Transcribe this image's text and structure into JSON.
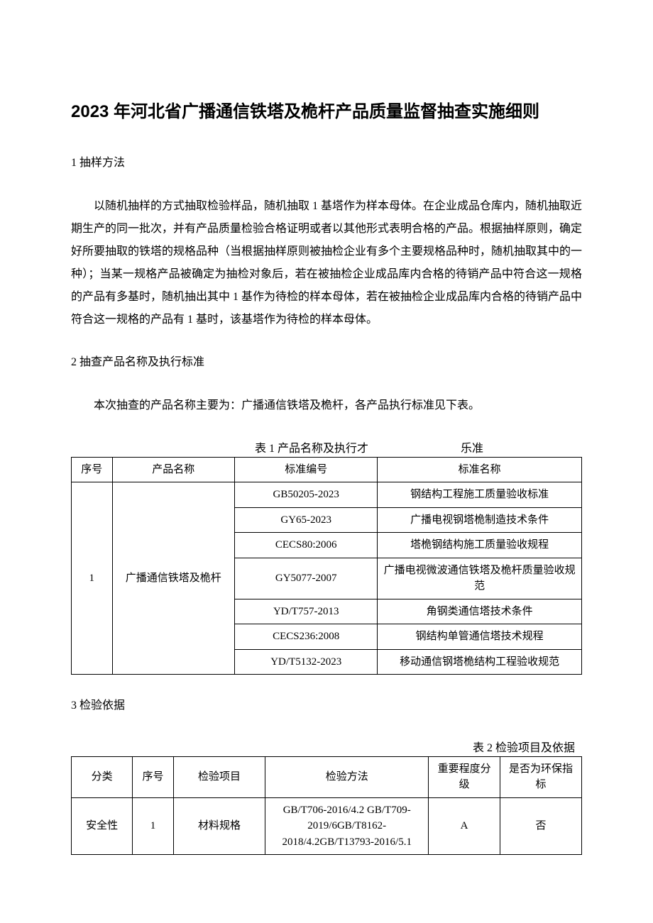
{
  "title": "2023 年河北省广播通信铁塔及桅杆产品质量监督抽查实施细则",
  "section1": {
    "heading": "1 抽样方法",
    "body": "以随机抽样的方式抽取检验样品，随机抽取 1 基塔作为样本母体。在企业成品仓库内，随机抽取近期生产的同一批次，并有产品质量检验合格证明或者以其他形式表明合格的产品。根据抽样原则，确定好所要抽取的铁塔的规格品种（当根据抽样原则被抽检企业有多个主要规格品种时，随机抽取其中的一种）；当某一规格产品被确定为抽检对象后，若在被抽检企业成品库内合格的待销产品中符合这一规格的产品有多基时，随机抽出其中 1 基作为待检的样本母体，若在被抽检企业成品库内合格的待销产品中符合这一规格的产品有 1 基时，该基塔作为待检的样本母体。"
  },
  "section2": {
    "heading": "2 抽查产品名称及执行标准",
    "intro": "本次抽查的产品名称主要为：广播通信铁塔及桅杆，各产品执行标准见下表。",
    "caption_left": "表 1 产品名称及执行才",
    "caption_right": "乐准",
    "headers": [
      "序号",
      "产品名称",
      "标准编号",
      "标准名称"
    ],
    "row_index": "1",
    "product_name": "广播通信铁塔及桅杆",
    "standards": [
      {
        "code": "GB50205-2023",
        "name": "钢结构工程施工质量验收标准"
      },
      {
        "code": "GY65-2023",
        "name": "广播电视钢塔桅制造技术条件"
      },
      {
        "code": "CECS80:2006",
        "name": "塔桅钢结构施工质量验收规程"
      },
      {
        "code": "GY5077-2007",
        "name": "广播电视微波通信铁塔及桅杆质量验收规范"
      },
      {
        "code": "YD/T757-2013",
        "name": "角钢类通信塔技术条件"
      },
      {
        "code": "CECS236:2008",
        "name": "钢结构单管通信塔技术规程"
      },
      {
        "code": "YD/T5132-2023",
        "name": "移动通信钢塔桅结构工程验收规范"
      }
    ]
  },
  "section3": {
    "heading": "3 检验依据",
    "caption": "表 2 检验项目及依据",
    "headers": [
      "分类",
      "序号",
      "检验项目",
      "检验方法",
      "重要程度分级",
      "是否为环保指标"
    ],
    "row": {
      "category": "安全性",
      "index": "1",
      "item": "材料规格",
      "method": "GB/T706-2016/4.2 GB/T709-2019/6GB/T8162-2018/4.2GB/T13793-2016/5.1",
      "level": "A",
      "env": "否"
    }
  }
}
